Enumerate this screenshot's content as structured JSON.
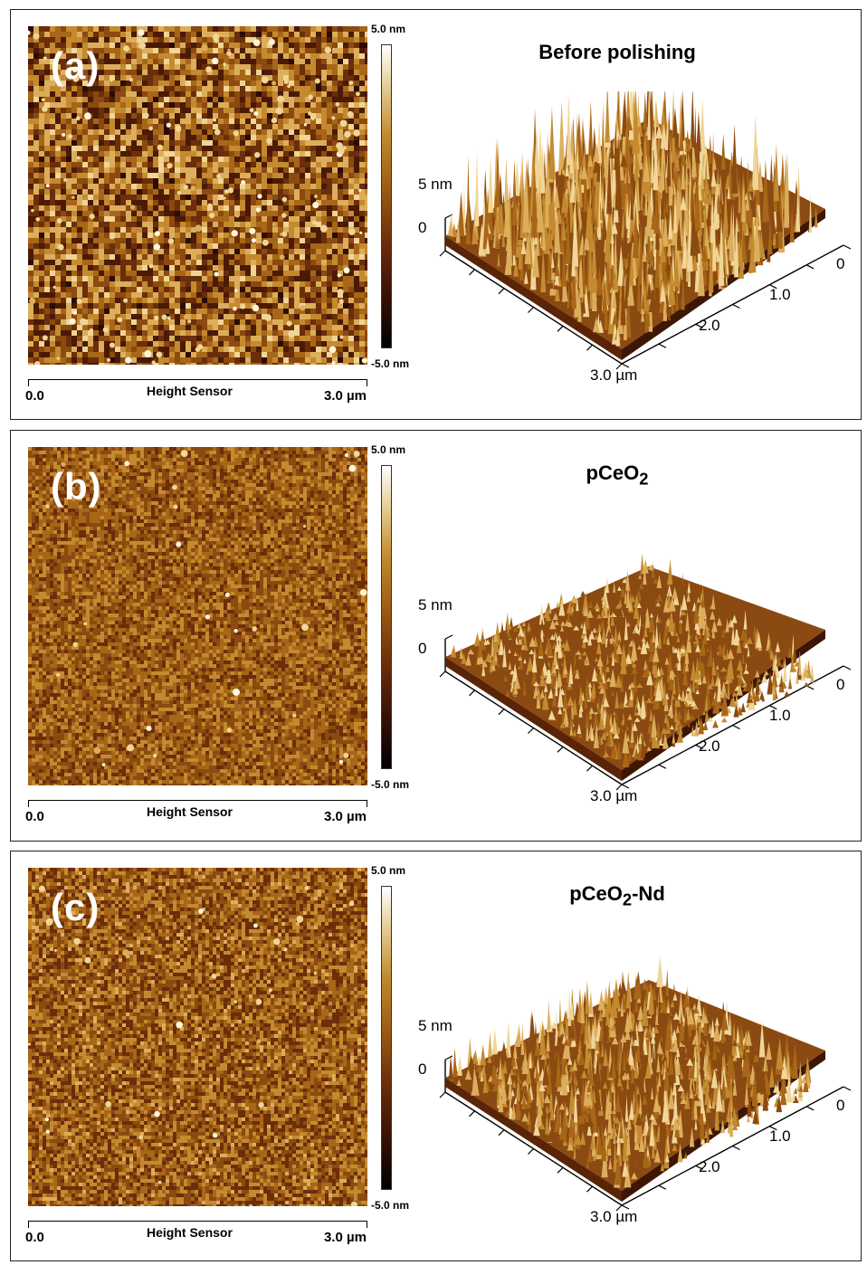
{
  "panels": [
    {
      "id": "a",
      "label": "(a)",
      "title": "Before polishing",
      "title_main": "Before polishing",
      "title_sub": "",
      "title_tail": "",
      "colorbar": {
        "max": "5.0 nm",
        "min": "-5.0 nm"
      },
      "scale": {
        "start": "0.0",
        "end": "3.0 µm",
        "name": "Height Sensor"
      },
      "axis3d": {
        "z_top": "5 nm",
        "z_zero": "0",
        "ticks": [
          "0",
          "1.0",
          "2.0",
          "3.0 µm"
        ]
      },
      "roughness": 1.0
    },
    {
      "id": "b",
      "label": "(b)",
      "title": "pCeO2",
      "title_main": "pCeO",
      "title_sub": "2",
      "title_tail": "",
      "colorbar": {
        "max": "5.0 nm",
        "min": "-5.0 nm"
      },
      "scale": {
        "start": "0.0",
        "end": "3.0 µm",
        "name": "Height Sensor"
      },
      "axis3d": {
        "z_top": "5 nm",
        "z_zero": "0",
        "ticks": [
          "0",
          "1.0",
          "2.0",
          "3.0 µm"
        ]
      },
      "roughness": 0.25
    },
    {
      "id": "c",
      "label": "(c)",
      "title": "pCeO2-Nd",
      "title_main": "pCeO",
      "title_sub": "2",
      "title_tail": "-Nd",
      "colorbar": {
        "max": "5.0 nm",
        "min": "-5.0 nm"
      },
      "scale": {
        "start": "0.0",
        "end": "3.0 µm",
        "name": "Height Sensor"
      },
      "axis3d": {
        "z_top": "5 nm",
        "z_zero": "0",
        "ticks": [
          "0",
          "1.0",
          "2.0",
          "3.0 µm"
        ]
      },
      "roughness": 0.45
    }
  ],
  "colors": {
    "dark": "#3a1405",
    "mid": "#8a4a10",
    "light": "#e8c77a",
    "highlight": "#fff4d8"
  }
}
